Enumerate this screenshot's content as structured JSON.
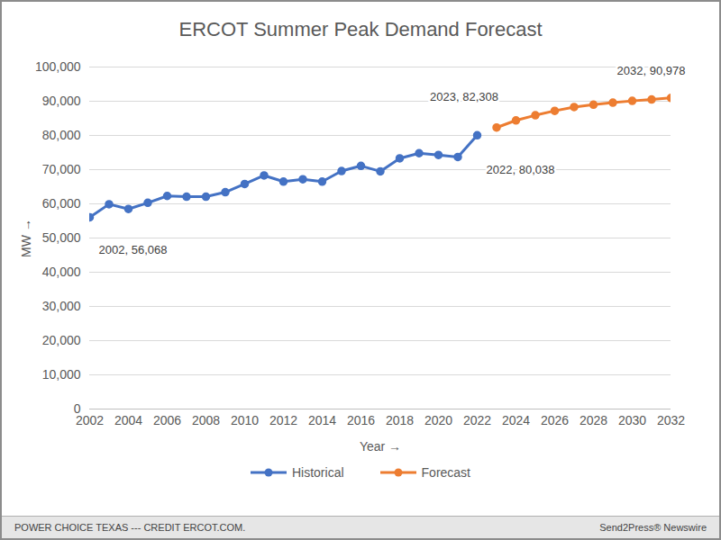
{
  "chart_data": {
    "type": "line",
    "title": "ERCOT Summer Peak Demand Forecast",
    "xlabel": "Year",
    "ylabel": "MW",
    "x": [
      2002,
      2003,
      2004,
      2005,
      2006,
      2007,
      2008,
      2009,
      2010,
      2011,
      2012,
      2013,
      2014,
      2015,
      2016,
      2017,
      2018,
      2019,
      2020,
      2021,
      2022,
      2023,
      2024,
      2025,
      2026,
      2027,
      2028,
      2029,
      2030,
      2031,
      2032
    ],
    "series": [
      {
        "name": "Historical",
        "color": "#4472c4",
        "marker": "circle",
        "line_style": "solid",
        "values": [
          56068,
          59900,
          58500,
          60300,
          62300,
          62100,
          62100,
          63400,
          65800,
          68300,
          66500,
          67200,
          66500,
          69600,
          71100,
          69500,
          73300,
          74800,
          74300,
          73700,
          80038,
          null,
          null,
          null,
          null,
          null,
          null,
          null,
          null,
          null,
          null
        ]
      },
      {
        "name": "Forecast",
        "color": "#ed7d31",
        "marker": "circle",
        "line_style": "solid",
        "values": [
          null,
          null,
          null,
          null,
          null,
          null,
          null,
          null,
          null,
          null,
          null,
          null,
          null,
          null,
          null,
          null,
          null,
          null,
          null,
          null,
          null,
          82308,
          84400,
          85900,
          87200,
          88300,
          89000,
          89600,
          90100,
          90500,
          90978
        ]
      }
    ],
    "annotations": [
      {
        "text": "2002, 56,068",
        "x": 2002,
        "y": 56068
      },
      {
        "text": "2022, 80,038",
        "x": 2022,
        "y": 80038
      },
      {
        "text": "2023, 82,308",
        "x": 2023,
        "y": 82308
      },
      {
        "text": "2032, 90,978",
        "x": 2032,
        "y": 90978
      }
    ],
    "xlim": [
      2002,
      2032
    ],
    "xticks": [
      2002,
      2004,
      2006,
      2008,
      2010,
      2012,
      2014,
      2016,
      2018,
      2020,
      2022,
      2024,
      2026,
      2028,
      2030,
      2032
    ],
    "ylim": [
      0,
      100000
    ],
    "yticks": [
      0,
      {
        "value": 10000,
        "label": "10,000"
      },
      {
        "value": 20000,
        "label": "20,000"
      },
      {
        "value": 30000,
        "label": "30,000"
      },
      {
        "value": 40000,
        "label": "40,000"
      },
      {
        "value": 50000,
        "label": "50,000"
      },
      {
        "value": 60000,
        "label": "60,000"
      },
      {
        "value": 70000,
        "label": "70,000"
      },
      {
        "value": 80000,
        "label": "80,000"
      },
      {
        "value": 90000,
        "label": "90,000"
      },
      {
        "value": 100000,
        "label": "100,000"
      }
    ],
    "grid": true,
    "legend": "bottom",
    "source": "POWER CHOICE TEXAS  --- CREDIT ERCOT.COM.",
    "credit": "Send2Press® Newswire"
  }
}
